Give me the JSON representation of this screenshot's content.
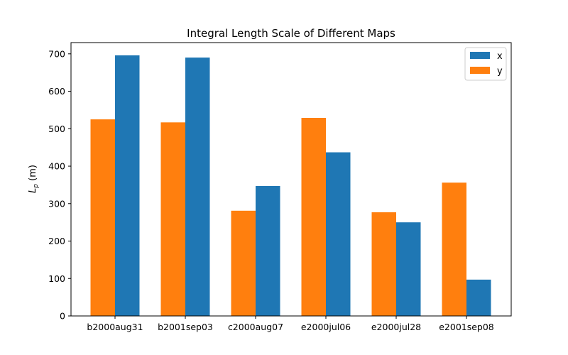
{
  "chart_data": {
    "type": "bar",
    "title": "Integral Length Scale of Different Maps",
    "xlabel": "",
    "ylabel": "L_p (m)",
    "ylabel_main": "L",
    "ylabel_sub": "p",
    "ylabel_unit": " (m)",
    "categories": [
      "b2000aug31",
      "b2001sep03",
      "c2000aug07",
      "e2000jul06",
      "e2000jul28",
      "e2001sep08"
    ],
    "series": [
      {
        "name": "y",
        "color": "#ff7f0e",
        "values": [
          525,
          517,
          281,
          529,
          277,
          356
        ]
      },
      {
        "name": "x",
        "color": "#1f77b4",
        "values": [
          696,
          690,
          347,
          437,
          250,
          97
        ]
      }
    ],
    "legend_order": [
      "x",
      "y"
    ],
    "legend_position": "top-right",
    "ylim": [
      0,
      730
    ],
    "yticks": [
      0,
      100,
      200,
      300,
      400,
      500,
      600,
      700
    ],
    "grid": false
  }
}
